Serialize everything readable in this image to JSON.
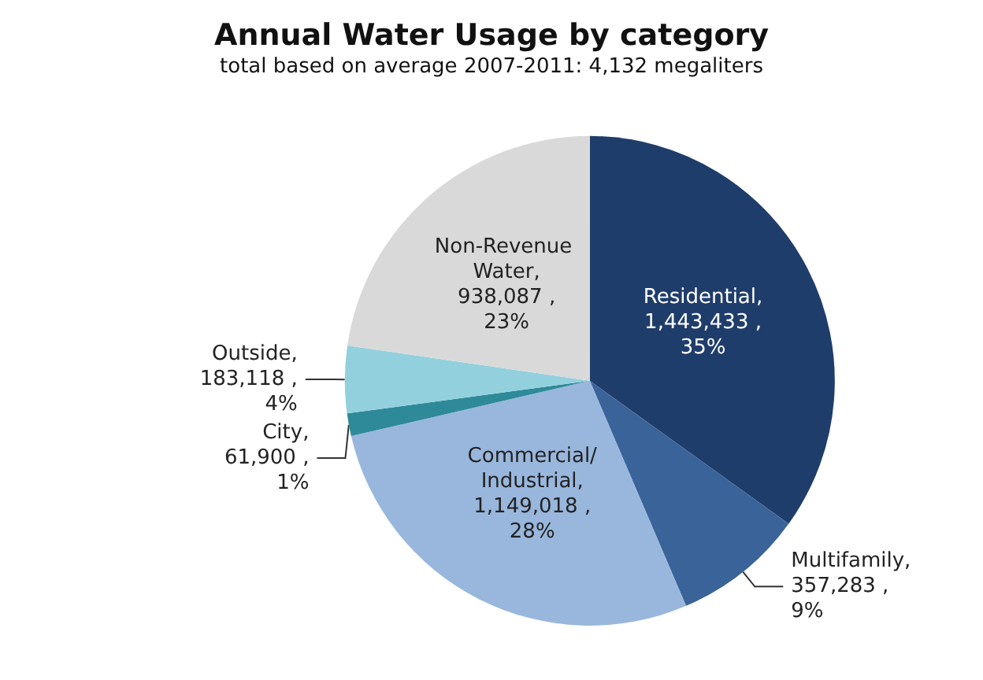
{
  "chart_data": {
    "type": "pie",
    "title": "Annual Water Usage by category",
    "subtitle": "total based on average 2007-2011: 4,132 megaliters",
    "categories": [
      "Residential",
      "Multifamily",
      "Commercial/Industrial",
      "City",
      "Outside",
      "Non-Revenue Water"
    ],
    "values": [
      1443433,
      357283,
      1149018,
      61900,
      183118,
      938087
    ],
    "value_labels": [
      ", 1,443,433 , 35%",
      ", 357,283 , 9%",
      ", 1,149,018 , 28%",
      ", 61,900 , 1%",
      ", 183,118 , 4%",
      ", 938,087 , 23%"
    ],
    "colors": [
      "#1f3d6b",
      "#3a6399",
      "#99b7dd",
      "#2e8a98",
      "#93d0de",
      "#d9d9d9"
    ],
    "legend": false
  }
}
